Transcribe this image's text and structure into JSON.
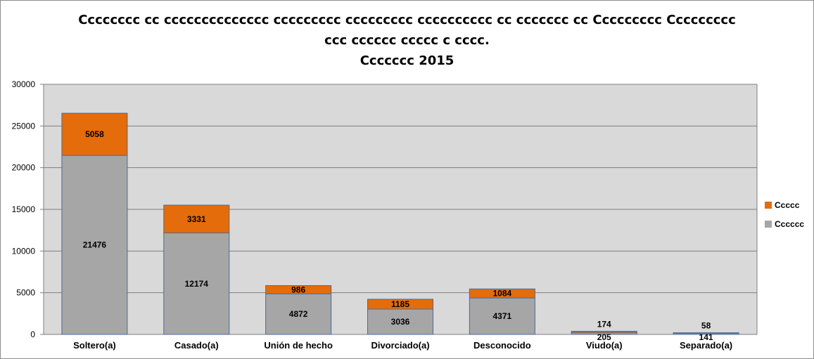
{
  "chart_data": {
    "type": "bar",
    "stacked": true,
    "title_lines": [
      "Cccccccc cc cccccccccccccc ccccccccc ccccccccc cccccccccc cc ccccccc cc Ccccccccc Ccccccccc",
      "ccc cccccc ccccc c cccc.",
      "Ccccccc 2015"
    ],
    "categories": [
      "Soltero(a)",
      "Casado(a)",
      "Unión de hecho",
      "Divorciado(a)",
      "Desconocido",
      "Viudo(a)",
      "Separado(a)"
    ],
    "series": [
      {
        "name": "Cccccc",
        "color": "#a6a6a6",
        "values": [
          21476,
          12174,
          4872,
          3036,
          4371,
          205,
          141
        ]
      },
      {
        "name": "Ccccc",
        "color": "#e46c0a",
        "values": [
          5058,
          3331,
          986,
          1185,
          1084,
          174,
          58
        ]
      }
    ],
    "ylim": [
      0,
      30000
    ],
    "yticks": [
      "0",
      "5000",
      "10000",
      "15000",
      "20000",
      "25000",
      "30000"
    ],
    "grid": true,
    "legend_position": "right",
    "plot_background": "#d9d9d9"
  }
}
